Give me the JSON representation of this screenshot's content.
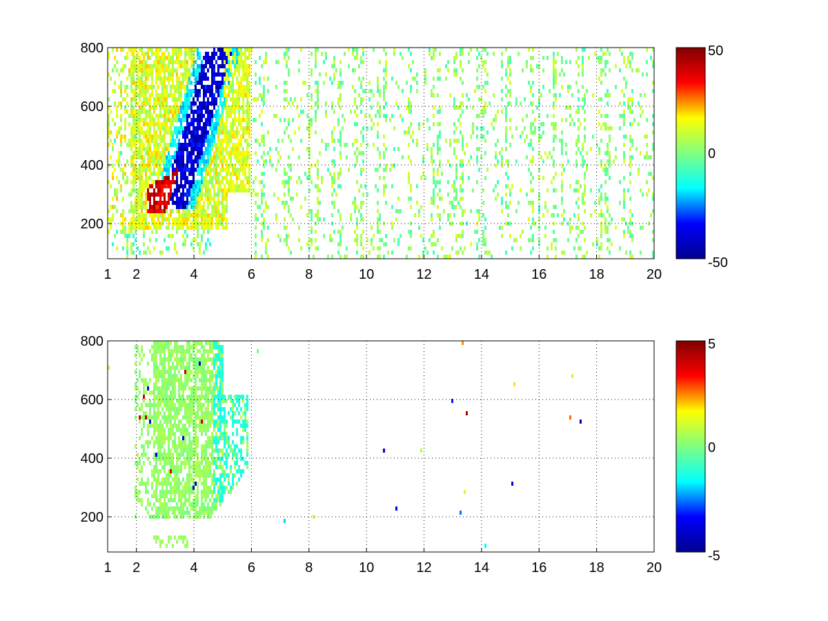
{
  "figure": {
    "background": "#ffffff"
  },
  "colormap": {
    "name": "jet",
    "stops": [
      "#00008f",
      "#0000ff",
      "#00ffff",
      "#80ff80",
      "#ffff00",
      "#ff0000",
      "#800000"
    ]
  },
  "chart_data": [
    {
      "type": "heatmap",
      "title": "",
      "xlabel": "",
      "ylabel": "",
      "xlim": [
        1,
        20
      ],
      "ylim": [
        80,
        800
      ],
      "x_ticks": [
        1,
        2,
        4,
        6,
        8,
        10,
        12,
        14,
        16,
        18,
        20
      ],
      "x_tick_labels": [
        "1",
        "2",
        "4",
        "6",
        "8",
        "10",
        "12",
        "14",
        "16",
        "18",
        "20"
      ],
      "y_ticks": [
        200,
        400,
        600,
        800
      ],
      "y_tick_labels": [
        "200",
        "400",
        "600",
        "800"
      ],
      "grid": true,
      "clim": [
        -50,
        50
      ],
      "colorbar_ticks": [
        -50,
        0,
        50
      ],
      "colorbar_tick_labels": [
        "-50",
        "0",
        "50"
      ],
      "structures": [
        {
          "feature": "dense warm field",
          "x_range": [
            2,
            6
          ],
          "y_range": [
            200,
            800
          ],
          "value": 15
        },
        {
          "feature": "strong positive ridge",
          "x_range": [
            2.5,
            4.2
          ],
          "y_range": [
            230,
            420
          ],
          "value": 45
        },
        {
          "feature": "strong negative band",
          "x_range": [
            3.2,
            5.0
          ],
          "y_range": [
            260,
            800
          ],
          "value": -45
        },
        {
          "feature": "sparse near-zero speckle",
          "x_range": [
            6,
            20
          ],
          "y_range": [
            80,
            800
          ],
          "value": 3
        }
      ]
    },
    {
      "type": "heatmap",
      "title": "",
      "xlabel": "",
      "ylabel": "",
      "xlim": [
        1,
        20
      ],
      "ylim": [
        80,
        800
      ],
      "x_ticks": [
        1,
        2,
        4,
        6,
        8,
        10,
        12,
        14,
        16,
        18,
        20
      ],
      "x_tick_labels": [
        "1",
        "2",
        "4",
        "6",
        "8",
        "10",
        "12",
        "14",
        "16",
        "18",
        "20"
      ],
      "y_ticks": [
        200,
        400,
        600,
        800
      ],
      "y_tick_labels": [
        "200",
        "400",
        "600",
        "800"
      ],
      "grid": true,
      "clim": [
        -5,
        5
      ],
      "colorbar_ticks": [
        -5,
        0,
        5
      ],
      "colorbar_tick_labels": [
        "-5",
        "0",
        "5"
      ],
      "structures": [
        {
          "feature": "near-zero green patch",
          "x_range": [
            2,
            5.8
          ],
          "y_range": [
            190,
            800
          ],
          "value": 0.3
        },
        {
          "feature": "cyan fringe",
          "x_range": [
            4.6,
            5.9
          ],
          "y_range": [
            300,
            620
          ],
          "value": -1
        },
        {
          "feature": "isolated outliers",
          "x_range": [
            1,
            9
          ],
          "y_range": [
            100,
            700
          ],
          "value": 4
        }
      ]
    }
  ]
}
